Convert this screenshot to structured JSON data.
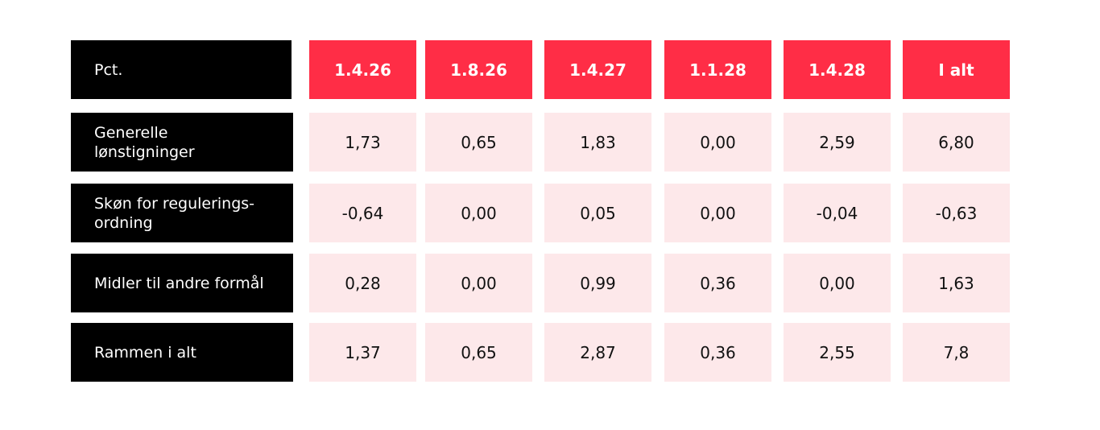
{
  "header": {
    "corner": "Pct.",
    "columns": [
      "1.4.26",
      "1.8.26",
      "1.4.27",
      "1.1.28",
      "1.4.28",
      "I alt"
    ]
  },
  "rows": [
    {
      "label": "Generelle lønstigninger",
      "values": [
        "1,73",
        "0,65",
        "1,83",
        "0,00",
        "2,59",
        "6,80"
      ]
    },
    {
      "label": "Skøn for regulerings-ordning",
      "values": [
        "-0,64",
        "0,00",
        "0,05",
        "0,00",
        "-0,04",
        "-0,63"
      ]
    },
    {
      "label": "Midler til andre formål",
      "values": [
        "0,28",
        "0,00",
        "0,99",
        "0,36",
        "0,00",
        "1,63"
      ]
    },
    {
      "label": "Rammen i alt",
      "values": [
        "1,37",
        "0,65",
        "2,87",
        "0,36",
        "2,55",
        "7,8"
      ]
    }
  ]
}
